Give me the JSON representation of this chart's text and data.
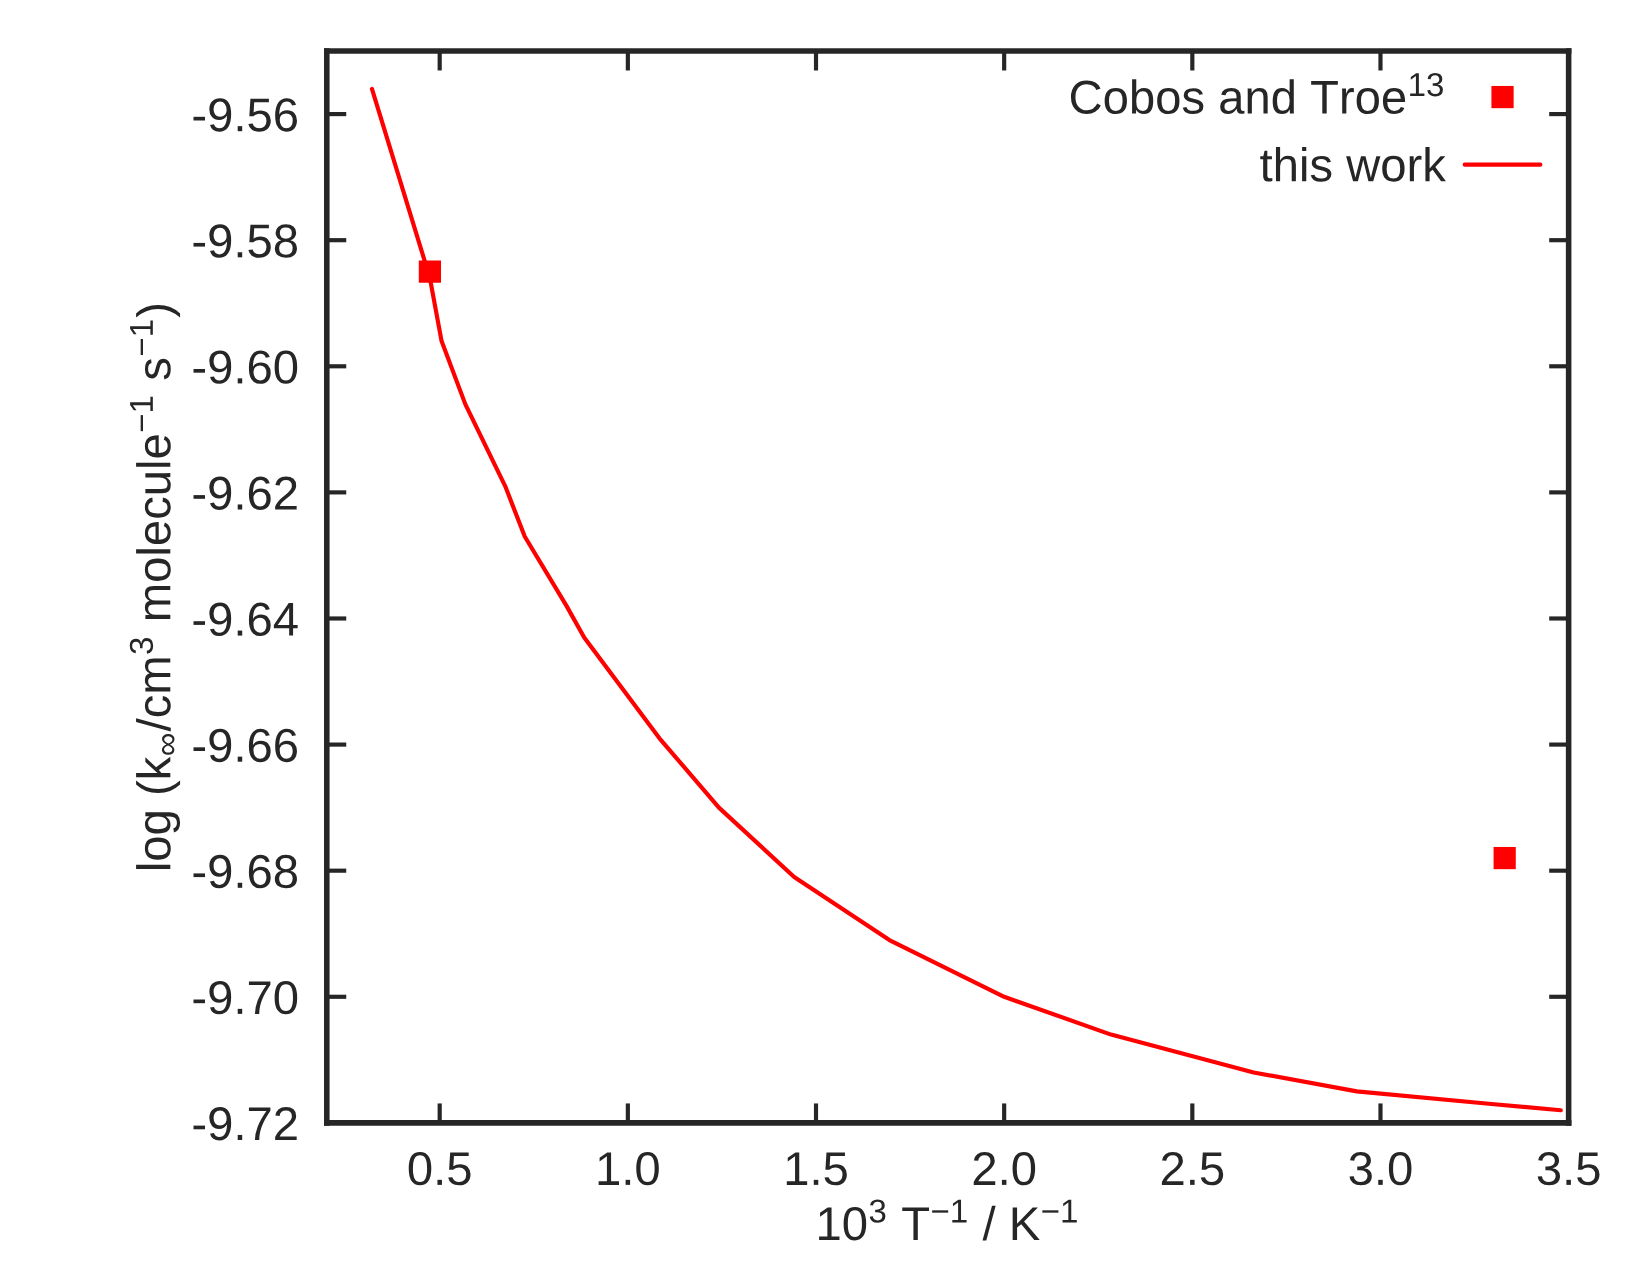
{
  "chart_data": {
    "type": "line",
    "xlabel": "10$^{3}$ T$^{−1}$ / K$^{−1}$",
    "ylabel": "log (k$_{∞}$/cm$^{3}$ molecule$^{−1}$ s$^{−1}$)",
    "xlim": [
      0.2,
      3.5
    ],
    "xticks": [
      {
        "value": 0.5,
        "label": "0.5"
      },
      {
        "value": 1.0,
        "label": "1.0"
      },
      {
        "value": 1.5,
        "label": "1.5"
      },
      {
        "value": 2.0,
        "label": "2.0"
      },
      {
        "value": 2.5,
        "label": "2.5"
      },
      {
        "value": 3.0,
        "label": "3.0"
      },
      {
        "value": 3.5,
        "label": "3.5"
      }
    ],
    "ylim": [
      -9.72,
      -9.55
    ],
    "yticks": [
      {
        "value": -9.72,
        "label": "-9.72"
      },
      {
        "value": -9.7,
        "label": "-9.70"
      },
      {
        "value": -9.68,
        "label": "-9.68"
      },
      {
        "value": -9.66,
        "label": "-9.66"
      },
      {
        "value": -9.64,
        "label": "-9.64"
      },
      {
        "value": -9.62,
        "label": "-9.62"
      },
      {
        "value": -9.6,
        "label": "-9.60"
      },
      {
        "value": -9.58,
        "label": "-9.58"
      },
      {
        "value": -9.56,
        "label": "-9.56"
      }
    ],
    "grid": false,
    "legend": "top right",
    "series": [
      {
        "name": "Cobos and Troe$^{13}$",
        "type": "scatter",
        "marker": "square",
        "color": "#ff0000",
        "x": [
          0.474,
          3.33
        ],
        "values": [
          -9.585,
          -9.678
        ]
      },
      {
        "name": "this work",
        "marker": "none",
        "line_style": "solid",
        "color": "#ff0000",
        "x": [
          0.32,
          0.474,
          0.505,
          0.568,
          0.674,
          0.726,
          0.837,
          0.884,
          1.084,
          1.242,
          1.442,
          1.695,
          2.0,
          2.284,
          2.663,
          2.937,
          3.295,
          3.479
        ],
        "values": [
          -9.556,
          -9.586,
          -9.596,
          -9.606,
          -9.619,
          -9.627,
          -9.638,
          -9.643,
          -9.659,
          -9.67,
          -9.681,
          -9.691,
          -9.7,
          -9.706,
          -9.712,
          -9.715,
          -9.717,
          -9.718
        ]
      }
    ]
  }
}
